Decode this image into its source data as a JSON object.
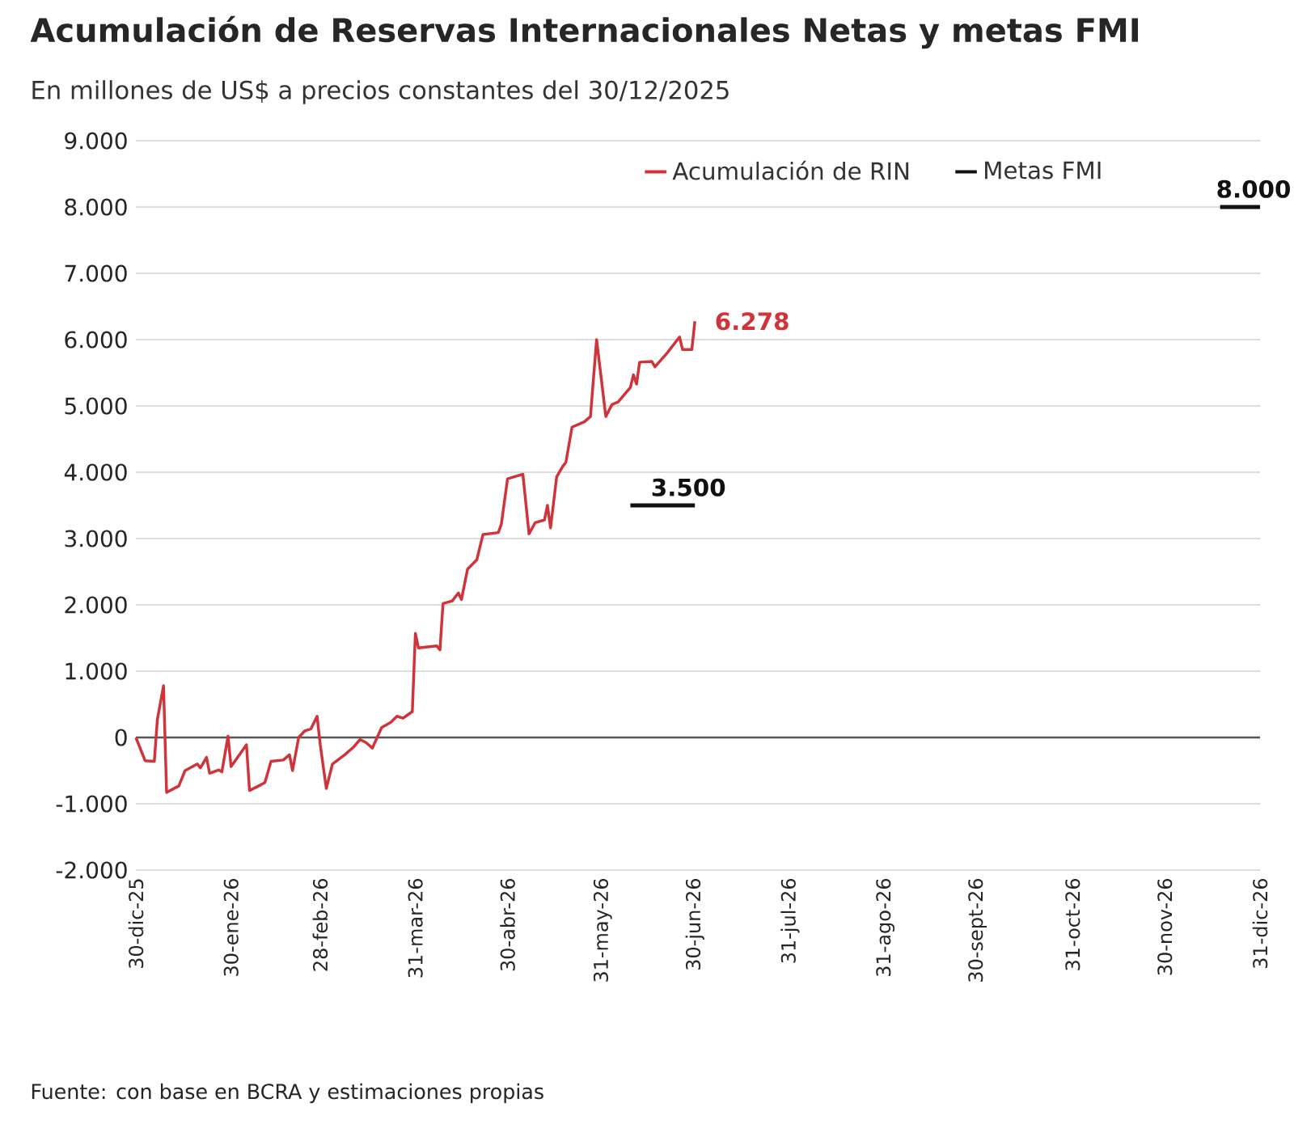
{
  "chart_data": {
    "type": "line",
    "title": "Acumulación de Reservas Internacionales Netas y metas FMI",
    "subtitle": "En millones de US$ a precios constantes del 30/12/2025",
    "annotations": [
      "Fuente: con base en BCRA y estimaciones propias"
    ],
    "series": [
      {
        "name": "Acumulación de RIN",
        "color": "#d0343a",
        "x": [
          "2025-12-30",
          "2026-01-02",
          "2026-01-05",
          "2026-01-06",
          "2026-01-08",
          "2026-01-09",
          "2026-01-13",
          "2026-01-15",
          "2026-01-19",
          "2026-01-20",
          "2026-01-22",
          "2026-01-23",
          "2026-01-26",
          "2026-01-27",
          "2026-01-29",
          "2026-01-30",
          "2026-02-04",
          "2026-02-05",
          "2026-02-08",
          "2026-02-10",
          "2026-02-12",
          "2026-02-16",
          "2026-02-18",
          "2026-02-19",
          "2026-02-21",
          "2026-02-23",
          "2026-02-25",
          "2026-02-27",
          "2026-02-28",
          "2026-03-02",
          "2026-03-04",
          "2026-03-08",
          "2026-03-11",
          "2026-03-13",
          "2026-03-15",
          "2026-03-17",
          "2026-03-20",
          "2026-03-23",
          "2026-03-25",
          "2026-03-27",
          "2026-03-30",
          "2026-03-31",
          "2026-04-01",
          "2026-04-07",
          "2026-04-08",
          "2026-04-09",
          "2026-04-12",
          "2026-04-14",
          "2026-04-15",
          "2026-04-17",
          "2026-04-20",
          "2026-04-22",
          "2026-04-27",
          "2026-04-28",
          "2026-04-30",
          "2026-05-05",
          "2026-05-07",
          "2026-05-09",
          "2026-05-12",
          "2026-05-13",
          "2026-05-14",
          "2026-05-16",
          "2026-05-18",
          "2026-05-19",
          "2026-05-21",
          "2026-05-25",
          "2026-05-27",
          "2026-05-29",
          "2026-06-01",
          "2026-06-03",
          "2026-06-05",
          "2026-06-09",
          "2026-06-10",
          "2026-06-11",
          "2026-06-12",
          "2026-06-16",
          "2026-06-17",
          "2026-06-21",
          "2026-06-25",
          "2026-06-26",
          "2026-06-29",
          "2026-06-30"
        ],
        "values": [
          0,
          -350,
          -360,
          270,
          780,
          -830,
          -730,
          -500,
          -400,
          -460,
          -300,
          -540,
          -490,
          -520,
          20,
          -440,
          -110,
          -800,
          -730,
          -680,
          -360,
          -340,
          -260,
          -500,
          0,
          100,
          130,
          320,
          -100,
          -770,
          -400,
          -260,
          -140,
          -30,
          -80,
          -160,
          150,
          230,
          320,
          290,
          390,
          1570,
          1350,
          1380,
          1320,
          2020,
          2060,
          2180,
          2080,
          2540,
          2680,
          3060,
          3090,
          3220,
          3900,
          3970,
          3070,
          3240,
          3280,
          3500,
          3160,
          3930,
          4090,
          4150,
          4680,
          4760,
          4840,
          6000,
          4840,
          5020,
          5060,
          5280,
          5470,
          5330,
          5660,
          5670,
          5590,
          5800,
          6040,
          5850,
          5850,
          6278
        ],
        "value_labels": [
          null,
          null,
          null,
          null,
          null,
          null,
          null,
          null,
          null,
          null,
          null,
          null,
          null,
          null,
          null,
          null,
          null,
          null,
          null,
          null,
          null,
          null,
          null,
          null,
          null,
          null,
          null,
          null,
          null,
          null,
          null,
          null,
          null,
          null,
          null,
          null,
          null,
          null,
          null,
          null,
          null,
          null,
          null,
          null,
          null,
          null,
          null,
          null,
          null,
          null,
          null,
          null,
          null,
          null,
          null,
          null,
          null,
          null,
          null,
          null,
          null,
          null,
          null,
          null,
          null,
          null,
          null,
          null,
          null,
          null,
          null,
          null,
          null,
          null,
          null,
          null,
          null,
          null,
          null,
          null,
          null,
          "6.278"
        ]
      },
      {
        "name": "Metas FMI",
        "color": "#111111",
        "x": [
          "2026-06-09",
          "2026-06-30"
        ],
        "values": [
          3500,
          3500
        ],
        "value_labels": [
          null,
          "3.500"
        ]
      },
      {
        "color": "#111111",
        "x": [
          "2026-12-18",
          "2026-12-31"
        ],
        "values": [
          8000,
          8000
        ],
        "value_labels": [
          null,
          "8.000"
        ]
      }
    ],
    "xlim": [
      "2025-12-30",
      "2026-12-31"
    ],
    "xticks": [
      {
        "value": "2025-12-30",
        "label": "30-dic-25"
      },
      {
        "value": "2026-01-30",
        "label": "30-ene-26"
      },
      {
        "value": "2026-02-28",
        "label": "28-feb-26"
      },
      {
        "value": "2026-03-31",
        "label": "31-mar-26"
      },
      {
        "value": "2026-04-30",
        "label": "30-abr-26"
      },
      {
        "value": "2026-05-31",
        "label": "31-may-26"
      },
      {
        "value": "2026-06-30",
        "label": "30-jun-26"
      },
      {
        "value": "2026-07-31",
        "label": "31-jul-26"
      },
      {
        "value": "2026-08-31",
        "label": "31-ago-26"
      },
      {
        "value": "2026-09-30",
        "label": "30-sept-26"
      },
      {
        "value": "2026-10-31",
        "label": "31-oct-26"
      },
      {
        "value": "2026-11-30",
        "label": "30-nov-26"
      },
      {
        "value": "2026-12-31",
        "label": "31-dic-26"
      }
    ],
    "ylim": [
      -2000,
      9000
    ],
    "yticks": [
      {
        "value": -2000,
        "label": "-2.000"
      },
      {
        "value": -1000,
        "label": "-1.000"
      },
      {
        "value": 0,
        "label": "0"
      },
      {
        "value": 1000,
        "label": "1.000"
      },
      {
        "value": 2000,
        "label": "2.000"
      },
      {
        "value": 3000,
        "label": "3.000"
      },
      {
        "value": 4000,
        "label": "4.000"
      },
      {
        "value": 5000,
        "label": "5.000"
      },
      {
        "value": 6000,
        "label": "6.000"
      },
      {
        "value": 7000,
        "label": "7.000"
      },
      {
        "value": 8000,
        "label": "8.000"
      },
      {
        "value": 9000,
        "label": "9.000"
      }
    ],
    "ref_lines": [
      {
        "axis": "y",
        "value": 0,
        "color": "#555555"
      }
    ],
    "grid": "y",
    "legend": "top right",
    "marker": "none",
    "line_style": "solid"
  }
}
